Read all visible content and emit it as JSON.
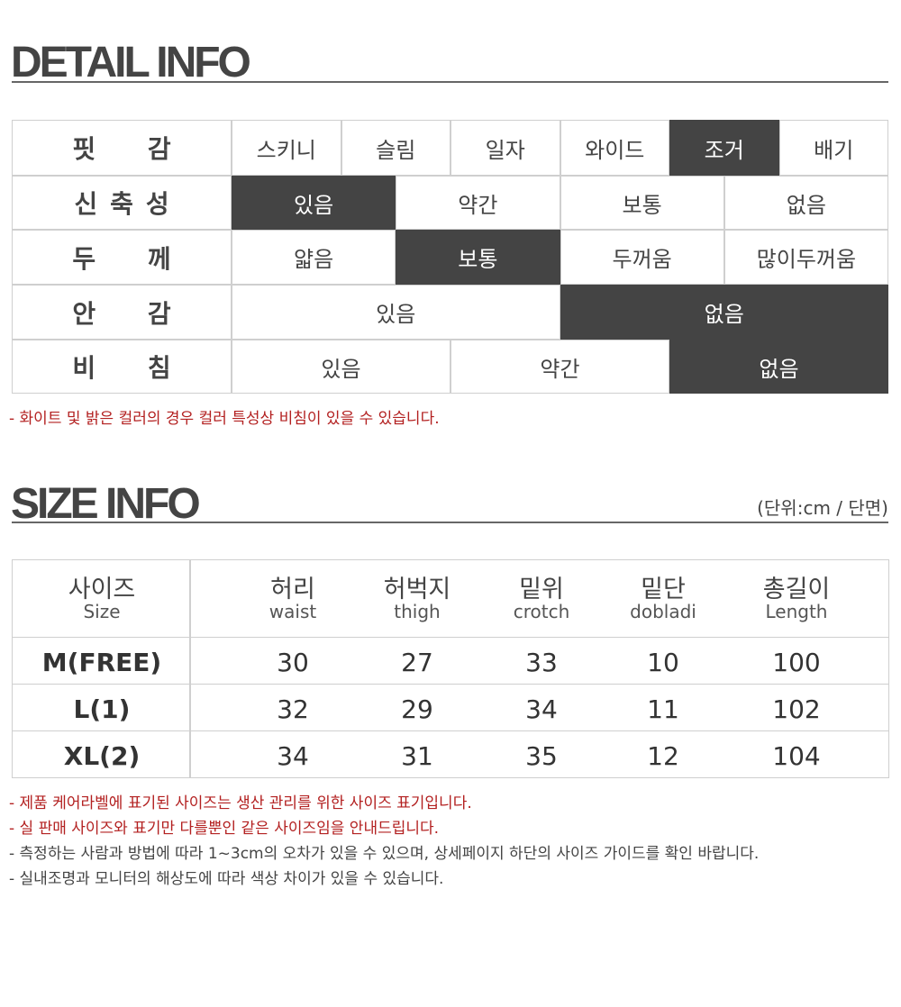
{
  "detail": {
    "title": "DETAIL INFO",
    "rows": [
      {
        "label": "핏 감",
        "options": [
          "스키니",
          "슬림",
          "일자",
          "와이드",
          "조거",
          "배기"
        ],
        "selected": 4
      },
      {
        "label": "신축성",
        "options": [
          "있음",
          "약간",
          "보통",
          "없음"
        ],
        "selected": 0
      },
      {
        "label": "두 께",
        "options": [
          "얇음",
          "보통",
          "두꺼움",
          "많이두꺼움"
        ],
        "selected": 1
      },
      {
        "label": "안 감",
        "options": [
          "있음",
          "없음"
        ],
        "selected": 1
      },
      {
        "label": "비 침",
        "options": [
          "있음",
          "약간",
          "없음"
        ],
        "selected": 2
      }
    ],
    "note": "- 화이트 및 밝은 컬러의 경우 컬러 특성상 비침이 있을 수 있습니다."
  },
  "size": {
    "title": "SIZE INFO",
    "unit": "(단위:cm / 단면)",
    "header": [
      {
        "ko": "사이즈",
        "en": "Size"
      },
      {
        "ko": "허리",
        "en": "waist"
      },
      {
        "ko": "허벅지",
        "en": "thigh"
      },
      {
        "ko": "밑위",
        "en": "crotch"
      },
      {
        "ko": "밑단",
        "en": "dobladi"
      },
      {
        "ko": "총길이",
        "en": "Length"
      }
    ],
    "rows": [
      [
        "M(FREE)",
        "30",
        "27",
        "33",
        "10",
        "100"
      ],
      [
        "L(1)",
        "32",
        "29",
        "34",
        "11",
        "102"
      ],
      [
        "XL(2)",
        "34",
        "31",
        "35",
        "12",
        "104"
      ]
    ],
    "notes": [
      {
        "text": "- 제품 케어라벨에 표기된 사이즈는 생산 관리를 위한 사이즈 표기입니다.",
        "color": "#b32020"
      },
      {
        "text": "- 실 판매 사이즈와 표기만 다를뿐인 같은 사이즈임을 안내드립니다.",
        "color": "#b32020"
      },
      {
        "text": "- 측정하는 사람과 방법에 따라 1~3cm의 오차가 있을 수 있으며, 상세페이지 하단의 사이즈 가이드를 확인 바랍니다.",
        "color": "#444444"
      },
      {
        "text": "- 실내조명과 모니터의 해상도에 따라 색상 차이가 있을 수 있습니다.",
        "color": "#444444"
      }
    ]
  }
}
